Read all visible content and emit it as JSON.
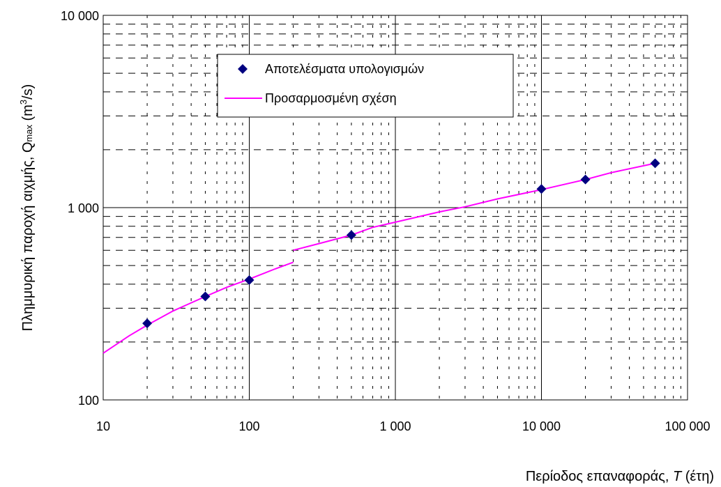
{
  "chart_data": {
    "type": "scatter",
    "x_scale": "log",
    "y_scale": "log",
    "xlim": [
      10,
      100000
    ],
    "ylim": [
      100,
      10000
    ],
    "x_ticks": [
      10,
      100,
      1000,
      10000,
      100000
    ],
    "x_tick_labels": [
      "10",
      "100",
      "1 000",
      "10 000",
      "100 000"
    ],
    "y_ticks": [
      100,
      1000,
      10000
    ],
    "y_tick_labels": [
      "100",
      "1 000",
      "10 000"
    ],
    "xlabel_main": "Περίοδος επαναφοράς, ",
    "xlabel_var": "T",
    "xlabel_unit": " (έτη)",
    "ylabel_main": "Πλημμυρική παροχή αιχμής, Q",
    "ylabel_sub": "max",
    "ylabel_unit_open": " (m",
    "ylabel_sup": "3",
    "ylabel_unit_close": "/s)",
    "grid": "major solid, minor dashed",
    "legend_position": "top-center",
    "colors": {
      "points": "#000080",
      "fit": "#ff00ff",
      "grid_major": "#000000",
      "grid_minor": "#000000"
    },
    "series": [
      {
        "name": "Αποτελέσματα υπολογισμών",
        "type": "scatter",
        "marker": "diamond",
        "x": [
          20,
          50,
          100,
          500,
          10000,
          20000,
          60000
        ],
        "y": [
          250,
          345,
          420,
          720,
          1250,
          1400,
          1700
        ]
      },
      {
        "name": "Προσαρμοσμένη σχέση",
        "type": "line",
        "segments": [
          {
            "x": [
              10,
              15,
              20,
              30,
              50,
              70,
              100,
              150,
              200
            ],
            "y": [
              175,
              215,
              245,
              290,
              345,
              385,
              425,
              480,
              520
            ]
          },
          {
            "x": [
              200,
              300,
              500,
              700,
              1000,
              2000,
              3000,
              5000,
              10000,
              20000,
              30000,
              60000
            ],
            "y": [
              600,
              650,
              720,
              790,
              840,
              950,
              1010,
              1110,
              1240,
              1400,
              1520,
              1700
            ]
          }
        ]
      }
    ]
  }
}
